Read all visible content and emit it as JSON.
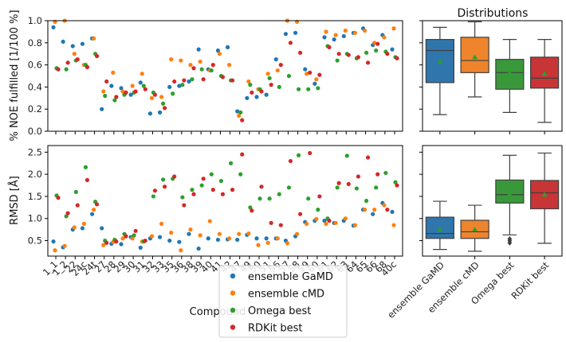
{
  "chart_data": [
    {
      "type": "scatter",
      "panel": "top-left",
      "ylabel": "% NOE fulfilled [1/100 %]",
      "ylim": [
        0,
        1.0
      ],
      "yticks": [
        0.0,
        0.2,
        0.4,
        0.6,
        0.8,
        1.0
      ],
      "categories": [
        "1_1",
        "1_2",
        "22",
        "24c",
        "24t",
        "27",
        "28",
        "29",
        "30",
        "31",
        "32",
        "33",
        "35",
        "36",
        "38",
        "39",
        "40",
        "41",
        "42",
        "47",
        "49",
        "50",
        "51",
        "56",
        "57",
        "58",
        "59",
        "60",
        "61",
        "62",
        "63",
        "64",
        "65",
        "66",
        "68",
        "40c"
      ],
      "series": [
        {
          "name": "ensemble GaMD",
          "color": "#1f77b4",
          "values": [
            0.94,
            0.81,
            0.77,
            0.79,
            0.84,
            0.2,
            0.41,
            0.39,
            0.33,
            0.44,
            0.16,
            0.17,
            0.4,
            0.41,
            0.45,
            0.74,
            0.56,
            0.73,
            0.76,
            0.18,
            0.3,
            0.31,
            0.33,
            0.65,
            0.88,
            0.89,
            0.56,
            0.43,
            0.85,
            0.83,
            0.86,
            0.89,
            0.93,
            0.78,
            0.87,
            0.74
          ]
        },
        {
          "name": "ensemble cMD",
          "color": "#ff7f0e",
          "values": [
            0.99,
            1.0,
            0.7,
            0.6,
            0.84,
            0.36,
            0.53,
            0.36,
            0.41,
            0.52,
            0.3,
            0.31,
            0.65,
            0.64,
            0.6,
            0.63,
            0.55,
            0.7,
            0.6,
            0.14,
            0.45,
            0.38,
            0.52,
            0.55,
            1.0,
            0.99,
            0.52,
            0.47,
            0.9,
            0.87,
            0.91,
            0.89,
            0.91,
            0.8,
            0.85,
            0.93
          ]
        },
        {
          "name": "Omega best",
          "color": "#2ca02c",
          "values": [
            0.57,
            0.56,
            0.64,
            0.6,
            0.7,
            0.32,
            0.28,
            0.33,
            0.35,
            0.41,
            0.35,
            0.25,
            0.34,
            0.42,
            0.47,
            0.56,
            0.55,
            0.5,
            0.46,
            0.17,
            0.42,
            0.38,
            0.48,
            0.4,
            0.5,
            0.38,
            0.38,
            0.39,
            0.77,
            0.64,
            0.7,
            0.66,
            0.71,
            0.73,
            0.72,
            0.67
          ]
        },
        {
          "name": "RDKit best",
          "color": "#d62728",
          "values": [
            0.56,
            0.62,
            0.65,
            0.58,
            0.68,
            0.45,
            0.31,
            0.35,
            0.36,
            0.38,
            0.33,
            0.21,
            0.45,
            0.46,
            0.57,
            0.47,
            0.6,
            0.49,
            0.46,
            0.1,
            0.35,
            0.36,
            0.42,
            0.6,
            0.8,
            0.71,
            0.53,
            0.51,
            0.76,
            0.7,
            0.69,
            0.67,
            0.62,
            0.79,
            0.7,
            0.66
          ]
        }
      ]
    },
    {
      "type": "scatter",
      "panel": "bottom-left",
      "xlabel": "Compound",
      "ylabel": "RMSD [Å]",
      "ylim": [
        0.15,
        2.65
      ],
      "yticks": [
        0.5,
        1.0,
        1.5,
        2.0,
        2.5
      ],
      "categories": [
        "1_1",
        "1_2",
        "22",
        "24c",
        "24t",
        "27",
        "28",
        "29",
        "30",
        "31",
        "32",
        "33",
        "35",
        "36",
        "38",
        "39",
        "40",
        "41",
        "42",
        "47",
        "49",
        "50",
        "51",
        "56",
        "57",
        "58",
        "59",
        "60",
        "61",
        "62",
        "63",
        "64",
        "65",
        "66",
        "68",
        "40c"
      ],
      "series": [
        {
          "name": "ensemble GaMD",
          "color": "#1f77b4",
          "values": [
            0.48,
            0.35,
            0.75,
            0.78,
            1.1,
            0.78,
            0.43,
            0.42,
            0.58,
            0.34,
            0.55,
            0.58,
            0.5,
            0.47,
            0.65,
            0.32,
            0.55,
            0.52,
            0.53,
            0.52,
            0.63,
            0.55,
            0.55,
            0.55,
            0.5,
            0.6,
            0.92,
            0.95,
            0.95,
            0.9,
            0.95,
            0.84,
            1.2,
            1.1,
            1.35,
            1.15
          ]
        },
        {
          "name": "ensemble cMD",
          "color": "#ff7f0e",
          "values": [
            0.28,
            0.38,
            0.8,
            0.88,
            1.2,
            0.4,
            0.47,
            0.55,
            0.55,
            0.48,
            0.6,
            0.88,
            0.68,
            0.28,
            0.75,
            0.62,
            0.94,
            0.65,
            0.55,
            0.65,
            0.66,
            0.4,
            0.45,
            0.55,
            0.44,
            0.65,
            0.88,
            0.99,
            0.88,
            0.9,
            1.0,
            0.85,
            1.2,
            1.2,
            1.3,
            0.85
          ]
        },
        {
          "name": "Omega best",
          "color": "#2ca02c",
          "values": [
            1.52,
            1.05,
            1.6,
            2.16,
            1.38,
            0.5,
            0.52,
            0.65,
            0.62,
            0.48,
            1.5,
            1.88,
            1.9,
            1.48,
            1.65,
            1.75,
            2.0,
            1.85,
            2.25,
            2.0,
            1.25,
            1.45,
            1.45,
            1.55,
            1.7,
            2.43,
            1.45,
            1.2,
            1.0,
            1.7,
            2.42,
            1.68,
            1.4,
            1.7,
            2.03,
            1.82
          ]
        },
        {
          "name": "RDKit best",
          "color": "#d62728",
          "values": [
            1.47,
            1.12,
            1.3,
            1.87,
            1.32,
            0.45,
            0.48,
            0.6,
            0.72,
            0.5,
            1.63,
            1.72,
            1.95,
            1.3,
            1.55,
            1.9,
            1.65,
            1.55,
            1.65,
            2.45,
            1.18,
            1.72,
            0.9,
            0.85,
            2.3,
            1.1,
            2.48,
            1.5,
            0.95,
            1.8,
            1.78,
            1.95,
            2.38,
            2.0,
            1.2,
            1.75
          ]
        }
      ]
    },
    {
      "type": "box",
      "panel": "top-right",
      "title": "Distributions",
      "ylim": [
        0,
        1.0
      ],
      "boxes": [
        {
          "name": "ensemble GaMD",
          "color": "#2f76ad",
          "min": 0.15,
          "q1": 0.44,
          "median": 0.73,
          "q3": 0.83,
          "max": 0.94,
          "mean": 0.63
        },
        {
          "name": "ensemble cMD",
          "color": "#ee842c",
          "min": 0.31,
          "q1": 0.53,
          "median": 0.64,
          "q3": 0.85,
          "max": 0.99,
          "mean": 0.67
        },
        {
          "name": "Omega best",
          "color": "#39993a",
          "min": 0.17,
          "q1": 0.38,
          "median": 0.53,
          "q3": 0.65,
          "max": 0.83,
          "mean": 0.53
        },
        {
          "name": "RDKit best",
          "color": "#c83536",
          "min": 0.08,
          "q1": 0.39,
          "median": 0.48,
          "q3": 0.67,
          "max": 0.83,
          "mean": 0.52
        }
      ]
    },
    {
      "type": "box",
      "panel": "bottom-right",
      "ylim": [
        0.15,
        2.65
      ],
      "boxes": [
        {
          "name": "ensemble GaMD",
          "color": "#2f76ad",
          "min": 0.3,
          "q1": 0.55,
          "median": 0.66,
          "q3": 1.03,
          "max": 1.39,
          "mean": 0.75,
          "outliers": []
        },
        {
          "name": "ensemble cMD",
          "color": "#ee842c",
          "min": 0.26,
          "q1": 0.55,
          "median": 0.7,
          "q3": 0.96,
          "max": 1.3,
          "mean": 0.75,
          "outliers": []
        },
        {
          "name": "Omega best",
          "color": "#39993a",
          "min": 0.63,
          "q1": 1.35,
          "median": 1.54,
          "q3": 1.87,
          "max": 2.43,
          "mean": 1.55,
          "outliers": [
            0.45,
            0.5,
            0.54
          ]
        },
        {
          "name": "RDKit best",
          "color": "#c83536",
          "min": 0.44,
          "q1": 1.22,
          "median": 1.58,
          "q3": 1.86,
          "max": 2.48,
          "mean": 1.54,
          "outliers": []
        }
      ]
    }
  ],
  "legend": {
    "placement": "bottom-center",
    "entries": [
      {
        "label": "ensemble GaMD",
        "color": "#1f77b4"
      },
      {
        "label": "ensemble cMD",
        "color": "#ff7f0e"
      },
      {
        "label": "Omega best",
        "color": "#2ca02c"
      },
      {
        "label": "RDKit best",
        "color": "#d62728"
      }
    ]
  }
}
